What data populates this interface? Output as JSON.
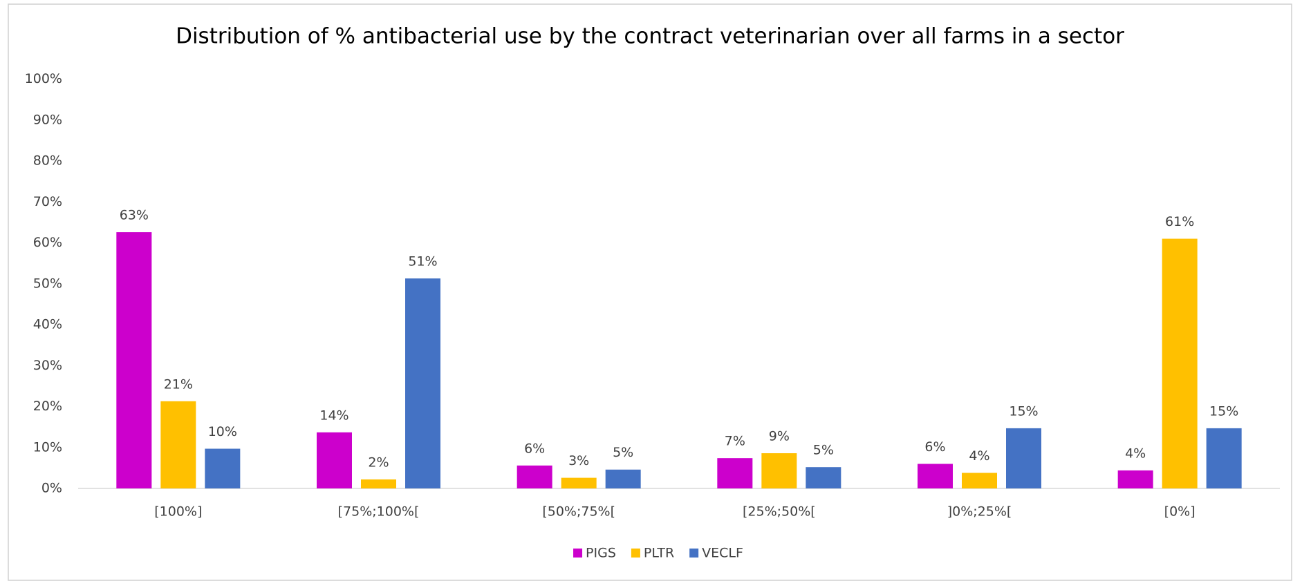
{
  "chart_data": {
    "type": "bar",
    "title": "Distribution of % antibacterial use by the contract veterinarian over all farms in a sector",
    "categories": [
      "[100%]",
      "[75%;100%[",
      "[50%;75%[",
      "[25%;50%[",
      "]0%;25%[",
      "[0%]"
    ],
    "series": [
      {
        "name": "PIGS",
        "color": "#cc00cc",
        "values": [
          62.6,
          13.7,
          5.6,
          7.4,
          6.0,
          4.4
        ],
        "value_labels": [
          "63%",
          "14%",
          "6%",
          "7%",
          "6%",
          "4%"
        ]
      },
      {
        "name": "PLTR",
        "color": "#ffc000",
        "values": [
          21.3,
          2.2,
          2.6,
          8.6,
          3.8,
          61.0
        ],
        "value_labels": [
          "21%",
          "2%",
          "3%",
          "9%",
          "4%",
          "61%"
        ]
      },
      {
        "name": "VECLF",
        "color": "#4472c4",
        "values": [
          9.7,
          51.3,
          4.6,
          5.2,
          14.7,
          14.7
        ],
        "value_labels": [
          "10%",
          "51%",
          "5%",
          "5%",
          "15%",
          "15%"
        ]
      }
    ],
    "ylim": [
      0,
      100
    ],
    "yticks": [
      {
        "value": 0,
        "label": "0%"
      },
      {
        "value": 10,
        "label": "10%"
      },
      {
        "value": 20,
        "label": "20%"
      },
      {
        "value": 30,
        "label": "30%"
      },
      {
        "value": 40,
        "label": "40%"
      },
      {
        "value": 50,
        "label": "50%"
      },
      {
        "value": 60,
        "label": "60%"
      },
      {
        "value": 70,
        "label": "70%"
      },
      {
        "value": 80,
        "label": "80%"
      },
      {
        "value": 90,
        "label": "90%"
      },
      {
        "value": 100,
        "label": "100%"
      }
    ],
    "grid": false,
    "legend": "bottom"
  }
}
